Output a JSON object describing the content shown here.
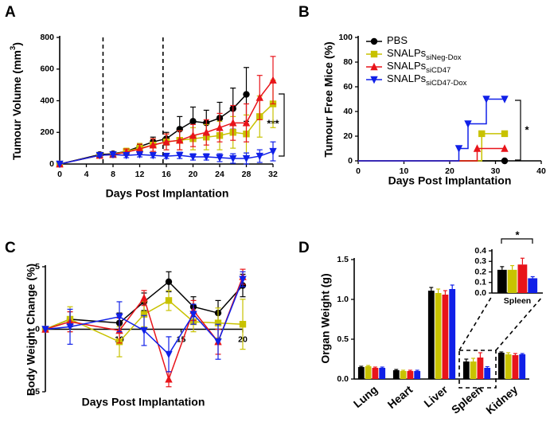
{
  "chart_data": [
    {
      "type": "line",
      "panel": "A",
      "y_label": "Tumour Volume (mm",
      "y_label_sup": "3",
      "y_label_end": ")",
      "x_label": "Days Post Implantation",
      "annotation": "***",
      "x": [
        0,
        6,
        8,
        10,
        12,
        14,
        16,
        18,
        20,
        22,
        24,
        26,
        28,
        30,
        32
      ],
      "xlim": [
        0,
        32
      ],
      "xticks": [
        0,
        4,
        8,
        12,
        16,
        20,
        24,
        28,
        32
      ],
      "ylim": [
        0,
        800
      ],
      "yticks": [
        0,
        200,
        400,
        600,
        800
      ],
      "vlines": [
        6.5,
        15.5
      ],
      "series": [
        {
          "color": "#000000",
          "marker": "circle",
          "values": [
            0,
            60,
            65,
            80,
            110,
            140,
            160,
            220,
            270,
            260,
            290,
            350,
            440,
            null,
            null
          ],
          "errors": [
            0,
            10,
            10,
            15,
            20,
            30,
            40,
            80,
            90,
            80,
            100,
            130,
            170,
            null,
            null
          ]
        },
        {
          "color": "#c8c200",
          "marker": "square",
          "values": [
            0,
            55,
            60,
            80,
            100,
            120,
            140,
            150,
            160,
            170,
            180,
            200,
            190,
            300,
            380
          ],
          "errors": [
            0,
            10,
            15,
            20,
            30,
            40,
            50,
            60,
            70,
            80,
            90,
            100,
            120,
            130,
            150
          ]
        },
        {
          "color": "#e8141a",
          "marker": "triangle-up",
          "values": [
            0,
            55,
            60,
            75,
            95,
            120,
            140,
            150,
            180,
            200,
            230,
            260,
            260,
            420,
            530
          ],
          "errors": [
            0,
            10,
            15,
            20,
            30,
            40,
            50,
            60,
            70,
            80,
            90,
            110,
            120,
            140,
            150
          ]
        },
        {
          "color": "#1020e8",
          "marker": "triangle-down",
          "values": [
            0,
            55,
            60,
            55,
            60,
            55,
            50,
            55,
            45,
            45,
            40,
            35,
            35,
            50,
            80
          ],
          "errors": [
            0,
            10,
            15,
            15,
            15,
            15,
            15,
            20,
            20,
            20,
            25,
            30,
            35,
            40,
            60
          ]
        }
      ]
    },
    {
      "type": "step",
      "panel": "B",
      "y_label": "Tumour Free Mice (%)",
      "x_label": "Days Post Implantation",
      "annotation": "*",
      "xlim": [
        0,
        40
      ],
      "xticks": [
        0,
        10,
        20,
        30,
        40
      ],
      "ylim": [
        0,
        100
      ],
      "yticks": [
        0,
        20,
        40,
        60,
        80,
        100
      ],
      "legend": "top-left",
      "series": [
        {
          "name": "PBS",
          "color": "#000000",
          "marker": "circle",
          "x": [
            0,
            32
          ],
          "values": [
            0,
            0
          ]
        },
        {
          "name": "SNALPs",
          "name_subscript": "siNeg-Dox",
          "color": "#c8c200",
          "marker": "square",
          "x": [
            0,
            27,
            32
          ],
          "values": [
            0,
            22,
            22
          ]
        },
        {
          "name": "SNALPs",
          "name_subscript": "siCD47",
          "color": "#e8141a",
          "marker": "triangle-up",
          "x": [
            0,
            26,
            32
          ],
          "values": [
            0,
            10,
            10
          ]
        },
        {
          "name": "SNALPs",
          "name_subscript": "siCD47-Dox",
          "color": "#1020e8",
          "marker": "triangle-down",
          "x": [
            0,
            22,
            24,
            28,
            32
          ],
          "values": [
            0,
            10,
            30,
            50,
            50
          ]
        }
      ]
    },
    {
      "type": "line",
      "panel": "C",
      "y_label": "Body Weight Change (%)",
      "x_label": "Days Post Implantation",
      "x": [
        4,
        6,
        10,
        12,
        14,
        16,
        18,
        20
      ],
      "xlim": [
        4,
        20
      ],
      "xticks": [
        10,
        15,
        20
      ],
      "ylim": [
        -5,
        5
      ],
      "yticks": [
        -5,
        0,
        5
      ],
      "x_axis_at_zero": true,
      "series": [
        {
          "color": "#000000",
          "marker": "circle",
          "values": [
            0,
            0.8,
            0.5,
            2.2,
            3.8,
            1.8,
            1.3,
            3.5
          ],
          "errors": [
            0,
            0.6,
            0.8,
            0.7,
            0.8,
            0.8,
            1.0,
            0.9
          ]
        },
        {
          "color": "#c8c200",
          "marker": "square",
          "values": [
            0,
            0.8,
            -1.0,
            1.2,
            2.3,
            0.6,
            0.5,
            0.4
          ],
          "errors": [
            0,
            1.0,
            1.2,
            1.0,
            0.8,
            0.8,
            1.2,
            2.0
          ]
        },
        {
          "color": "#e8141a",
          "marker": "triangle-up",
          "values": [
            0,
            0.6,
            -0.1,
            2.5,
            -4.0,
            1.5,
            -1.0,
            4.2
          ],
          "errors": [
            0,
            0.8,
            1.0,
            0.6,
            0.6,
            0.8,
            1.0,
            0.6
          ]
        },
        {
          "color": "#1020e8",
          "marker": "triangle-down",
          "values": [
            0,
            0.2,
            1.0,
            -0.1,
            -2.0,
            1.2,
            -1.0,
            4.0
          ],
          "errors": [
            0,
            1.4,
            1.2,
            1.2,
            1.4,
            0.8,
            1.4,
            0.6
          ]
        }
      ]
    },
    {
      "type": "bar",
      "panel": "D",
      "y_label": "Organ Weight (g)",
      "categories": [
        "Lung",
        "Heart",
        "Liver",
        "Spleen",
        "Kidney"
      ],
      "ylim": [
        0,
        1.5
      ],
      "yticks": [
        {
          "value": 0,
          "label": "0.0"
        },
        0.5,
        {
          "value": 1,
          "label": "1.0"
        },
        1.5
      ],
      "series": [
        {
          "color": "#000000",
          "values": [
            0.15,
            0.11,
            1.11,
            0.22,
            0.33
          ],
          "errors": [
            0.01,
            0.01,
            0.04,
            0.03,
            0.01
          ]
        },
        {
          "color": "#c8c200",
          "values": [
            0.16,
            0.1,
            1.08,
            0.22,
            0.31
          ],
          "errors": [
            0.01,
            0.01,
            0.05,
            0.04,
            0.02
          ]
        },
        {
          "color": "#e8141a",
          "values": [
            0.14,
            0.1,
            1.06,
            0.27,
            0.3
          ],
          "errors": [
            0.01,
            0.01,
            0.05,
            0.06,
            0.02
          ]
        },
        {
          "color": "#1020e8",
          "values": [
            0.14,
            0.1,
            1.13,
            0.14,
            0.31
          ],
          "errors": [
            0.01,
            0.01,
            0.05,
            0.015,
            0.01
          ]
        }
      ]
    },
    {
      "type": "bar",
      "annotation": "*",
      "categories": [
        "Spleen"
      ],
      "ylim": [
        0,
        0.4
      ],
      "yticks": [
        {
          "value": 0,
          "label": "0.0"
        },
        0.1,
        0.2,
        0.3,
        0.4
      ],
      "series": [
        {
          "color": "#000000",
          "values": [
            0.22
          ],
          "errors": [
            0.03
          ]
        },
        {
          "color": "#c8c200",
          "values": [
            0.22
          ],
          "errors": [
            0.04
          ]
        },
        {
          "color": "#e8141a",
          "values": [
            0.27
          ],
          "errors": [
            0.06
          ]
        },
        {
          "color": "#1020e8",
          "values": [
            0.14
          ],
          "errors": [
            0.015
          ]
        }
      ]
    }
  ]
}
